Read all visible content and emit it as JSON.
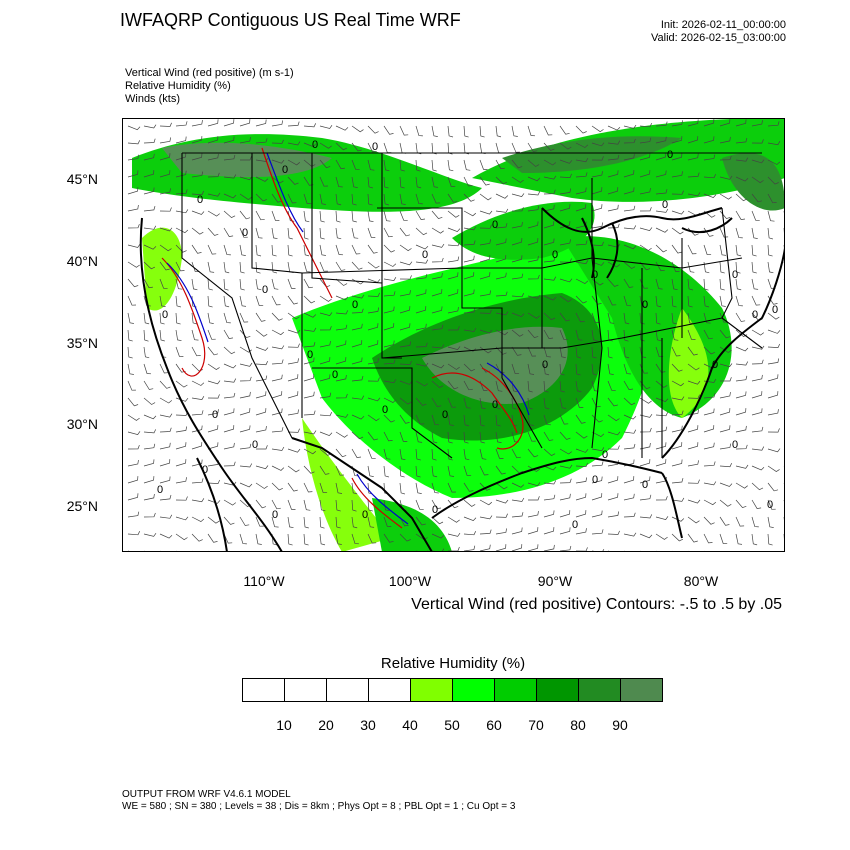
{
  "header": {
    "title": "IWFAQRP Contiguous US Real Time WRF",
    "init": "Init: 2026-02-11_00:00:00",
    "valid": "Valid: 2026-02-15_03:00:00"
  },
  "fields": [
    "Vertical Wind (red positive)   (m s-1)",
    "Relative Humidity   (%)",
    "Winds   (kts)"
  ],
  "map": {
    "lat_labels": [
      "45°N",
      "40°N",
      "35°N",
      "30°N",
      "25°N"
    ],
    "lon_labels": [
      "110°W",
      "100°W",
      "90°W",
      "80°W"
    ],
    "contour_label": "0",
    "colors": {
      "border": "#000000",
      "updraft": "#cc0000",
      "downdraft": "#0000cc",
      "barb": "#444444"
    }
  },
  "contour_note": "Vertical Wind (red positive) Contours: -.5 to .5 by .05",
  "colorbar": {
    "title": "Relative Humidity  (%)",
    "colors": [
      "#ffffff",
      "#ffffff",
      "#ffffff",
      "#ffffff",
      "#80ff00",
      "#00ff00",
      "#00cc00",
      "#009600",
      "#228b22",
      "#4f8a4f"
    ],
    "labels": [
      "10",
      "20",
      "30",
      "40",
      "50",
      "60",
      "70",
      "80",
      "90"
    ]
  },
  "footer": {
    "line1": "OUTPUT FROM WRF V4.6.1 MODEL",
    "line2": "WE = 580 ; SN = 380 ; Levels = 38 ; Dis = 8km ; Phys Opt = 8 ; PBL Opt = 1 ; Cu Opt = 3"
  }
}
